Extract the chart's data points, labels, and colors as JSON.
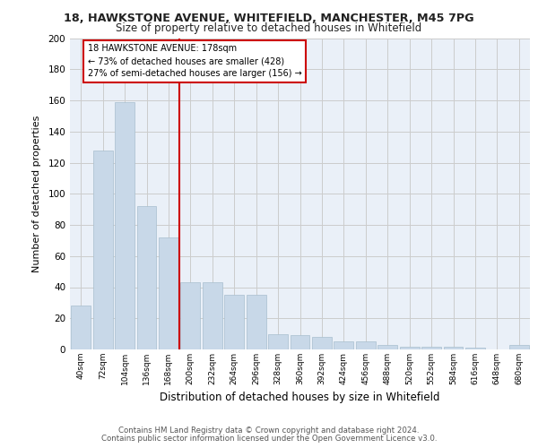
{
  "title1": "18, HAWKSTONE AVENUE, WHITEFIELD, MANCHESTER, M45 7PG",
  "title2": "Size of property relative to detached houses in Whitefield",
  "xlabel": "Distribution of detached houses by size in Whitefield",
  "ylabel": "Number of detached properties",
  "bar_values": [
    28,
    128,
    159,
    92,
    72,
    43,
    43,
    35,
    35,
    10,
    9,
    8,
    5,
    5,
    3,
    2,
    2,
    2,
    1,
    0,
    3
  ],
  "bin_labels": [
    "40sqm",
    "72sqm",
    "104sqm",
    "136sqm",
    "168sqm",
    "200sqm",
    "232sqm",
    "264sqm",
    "296sqm",
    "328sqm",
    "360sqm",
    "392sqm",
    "424sqm",
    "456sqm",
    "488sqm",
    "520sqm",
    "552sqm",
    "584sqm",
    "616sqm",
    "648sqm",
    "680sqm"
  ],
  "bar_color": "#c8d8e8",
  "bar_edge_color": "#a8bece",
  "grid_color": "#cccccc",
  "bg_color": "#eaf0f8",
  "vline_x": 4.5,
  "vline_color": "#cc0000",
  "annotation_text": "18 HAWKSTONE AVENUE: 178sqm\n← 73% of detached houses are smaller (428)\n27% of semi-detached houses are larger (156) →",
  "annotation_box_color": "#ffffff",
  "annotation_box_edge": "#cc0000",
  "ylim": [
    0,
    200
  ],
  "yticks": [
    0,
    20,
    40,
    60,
    80,
    100,
    120,
    140,
    160,
    180,
    200
  ],
  "footer1": "Contains HM Land Registry data © Crown copyright and database right 2024.",
  "footer2": "Contains public sector information licensed under the Open Government Licence v3.0."
}
